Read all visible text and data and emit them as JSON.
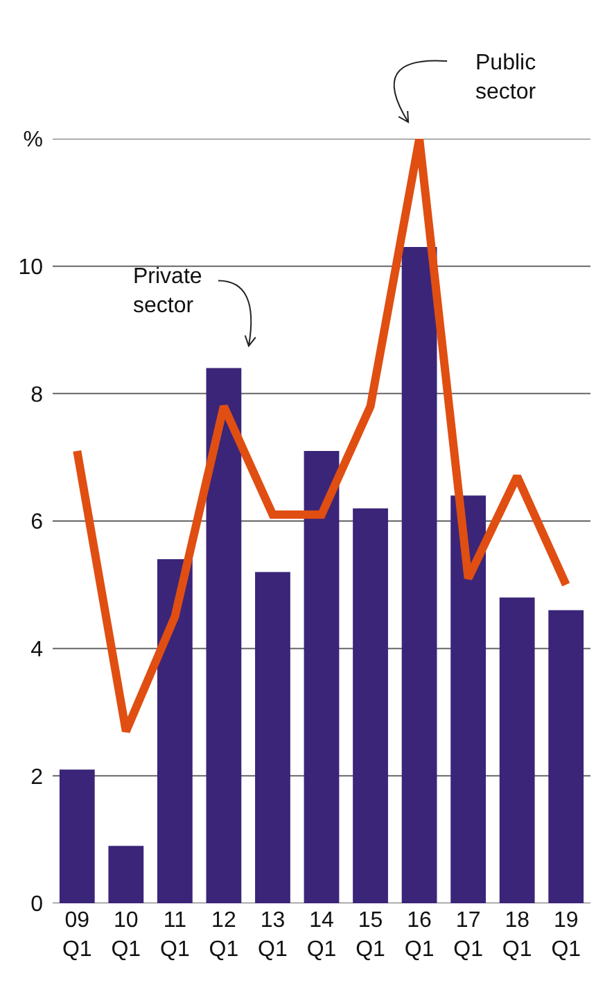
{
  "chart_data": {
    "type": "bar",
    "categories": [
      "09\nQ1",
      "10\nQ1",
      "11\nQ1",
      "12\nQ1",
      "13\nQ1",
      "14\nQ1",
      "15\nQ1",
      "16\nQ1",
      "17\nQ1",
      "18\nQ1",
      "19\nQ1"
    ],
    "series": [
      {
        "name": "Private sector",
        "color": "#3a2579",
        "values": [
          2.1,
          0.9,
          5.4,
          8.4,
          5.2,
          7.1,
          6.2,
          10.3,
          6.4,
          4.8,
          4.6
        ]
      },
      {
        "name": "Public sector",
        "type": "line",
        "color": "#e04e12",
        "values": [
          7.1,
          2.7,
          4.5,
          7.8,
          6.1,
          6.1,
          7.8,
          12,
          5.1,
          6.7,
          5.0
        ]
      }
    ],
    "ylim": [
      0,
      12
    ],
    "yticks": [
      0,
      2,
      4,
      6,
      8,
      10,
      {
        "value": 12,
        "label": "%"
      }
    ],
    "grid": "y",
    "legend": false
  }
}
